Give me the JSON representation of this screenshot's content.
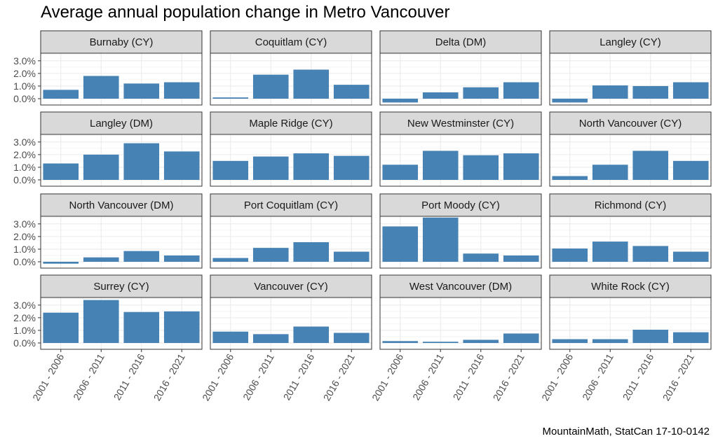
{
  "title": "Average annual population change in Metro Vancouver",
  "caption": "MountainMath, StatCan 17-10-0142",
  "chart_data": {
    "type": "bar",
    "facet_layout": "4x4 grid",
    "categories": [
      "2001 - 2006",
      "2006 - 2011",
      "2011 - 2016",
      "2016 - 2021"
    ],
    "y_ticks": [
      "0.0%",
      "1.0%",
      "2.0%",
      "3.0%"
    ],
    "ylim": [
      -0.5,
      3.6
    ],
    "bar_color": "#4682B4",
    "strip_color": "#D9D9D9",
    "grid": true,
    "facets": [
      {
        "name": "Burnaby (CY)",
        "values": [
          0.7,
          1.8,
          1.2,
          1.3
        ]
      },
      {
        "name": "Coquitlam (CY)",
        "values": [
          0.1,
          1.9,
          2.3,
          1.1
        ]
      },
      {
        "name": "Delta (DM)",
        "values": [
          -0.3,
          0.5,
          0.9,
          1.3
        ]
      },
      {
        "name": "Langley (CY)",
        "values": [
          -0.3,
          1.05,
          1.0,
          1.3
        ]
      },
      {
        "name": "Langley (DM)",
        "values": [
          1.3,
          2.0,
          2.9,
          2.25
        ]
      },
      {
        "name": "Maple Ridge (CY)",
        "values": [
          1.5,
          1.85,
          2.1,
          1.9
        ]
      },
      {
        "name": "New Westminster (CY)",
        "values": [
          1.2,
          2.3,
          1.95,
          2.1
        ]
      },
      {
        "name": "North Vancouver (CY)",
        "values": [
          0.3,
          1.2,
          2.3,
          1.5
        ]
      },
      {
        "name": "North Vancouver (DM)",
        "values": [
          -0.15,
          0.35,
          0.85,
          0.5
        ]
      },
      {
        "name": "Port Coquitlam (CY)",
        "values": [
          0.3,
          1.1,
          1.55,
          0.8
        ]
      },
      {
        "name": "Port Moody (CY)",
        "values": [
          2.8,
          3.5,
          0.65,
          0.5
        ]
      },
      {
        "name": "Richmond (CY)",
        "values": [
          1.05,
          1.6,
          1.25,
          0.8
        ]
      },
      {
        "name": "Surrey (CY)",
        "values": [
          2.4,
          3.4,
          2.45,
          2.5
        ]
      },
      {
        "name": "Vancouver (CY)",
        "values": [
          0.9,
          0.7,
          1.3,
          0.8
        ]
      },
      {
        "name": "West Vancouver (DM)",
        "values": [
          0.15,
          0.1,
          0.25,
          0.75
        ]
      },
      {
        "name": "White Rock (CY)",
        "values": [
          0.3,
          0.3,
          1.05,
          0.85
        ]
      }
    ]
  }
}
